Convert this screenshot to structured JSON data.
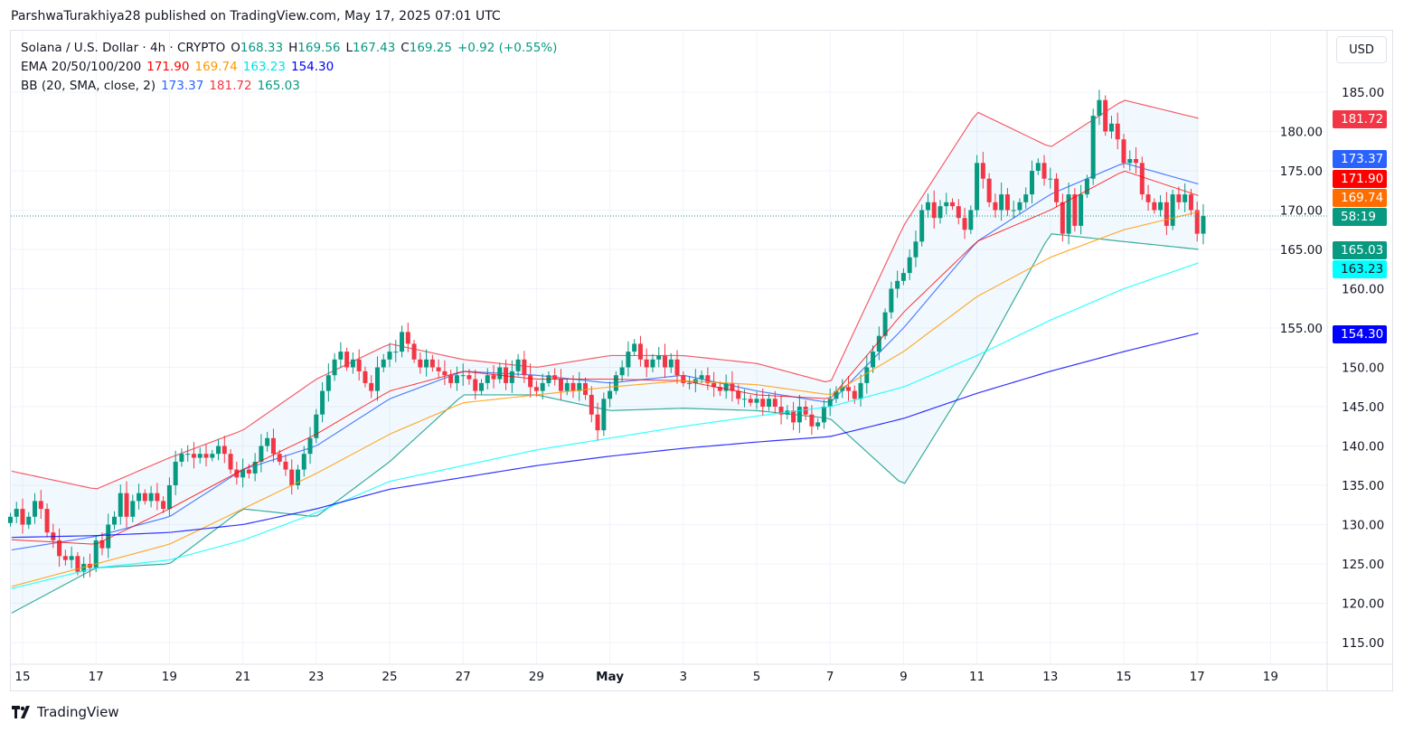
{
  "publisher_line": "ParshwaTurakhiya28 published on TradingView.com, May 17, 2025 07:01 UTC",
  "legend": {
    "symbol": "Solana / U.S. Dollar · 4h · CRYPTO",
    "o_label": "O",
    "o": "168.33",
    "h_label": "H",
    "h": "169.56",
    "l_label": "L",
    "l": "167.43",
    "c_label": "C",
    "c": "169.25",
    "change": "+0.92 (+0.55%)",
    "ema_label": "EMA 20/50/100/200",
    "ema_values": [
      "171.90",
      "169.74",
      "163.23",
      "154.30"
    ],
    "bb_label": "BB (20, SMA, close, 2)",
    "bb_values": [
      "173.37",
      "181.72",
      "165.03"
    ]
  },
  "currency_button": "USD",
  "footer_logo": "TradingView",
  "colors": {
    "up": "#089981",
    "down": "#f23645",
    "ema20": "#ff0000",
    "ema50": "#ff9800",
    "ema100": "#00ffff",
    "ema200": "#0000ff",
    "bb_basis": "#2962ff",
    "bb_upper": "#f23645",
    "bb_lower": "#089981",
    "bb_fill": "#2196f3"
  },
  "price_badges": [
    {
      "label": "181.72",
      "color": "#f23645",
      "text": "#ffffff"
    },
    {
      "label": "173.37",
      "color": "#2962ff",
      "text": "#ffffff"
    },
    {
      "label": "171.90",
      "color": "#ff0000",
      "text": "#ffffff"
    },
    {
      "label": "169.74",
      "color": "#ff6d00",
      "text": "#ffffff"
    },
    {
      "label": "58:19",
      "color": "#089981",
      "text": "#ffffff"
    },
    {
      "label": "165.03",
      "color": "#089981",
      "text": "#ffffff"
    },
    {
      "label": "163.23",
      "color": "#00ffff",
      "text": "#131722"
    },
    {
      "label": "154.30",
      "color": "#0000ff",
      "text": "#ffffff"
    }
  ],
  "chart_data": {
    "type": "candlestick",
    "timeframe": "4h",
    "first_candle": "Apr 14 16:00",
    "last_close": 169.25,
    "closes": [
      131,
      132,
      130,
      131,
      133,
      132,
      129,
      128,
      126,
      125.5,
      126,
      124,
      125,
      124.5,
      128,
      127,
      130,
      131,
      134,
      131,
      133,
      134,
      133,
      134,
      133,
      132,
      135,
      138,
      139,
      139,
      138.5,
      139,
      138.5,
      139,
      140,
      139,
      137,
      136,
      137,
      136.5,
      138,
      140,
      141,
      139,
      138,
      137,
      135,
      137,
      139,
      141,
      144,
      147,
      149,
      151,
      152,
      150,
      151,
      149.5,
      148,
      147,
      150,
      151,
      152,
      152,
      154.5,
      153,
      151,
      150,
      151,
      150,
      149.5,
      149,
      148,
      149,
      149,
      148.5,
      147,
      148,
      149,
      148.5,
      150,
      148,
      149.5,
      151,
      149,
      147.5,
      147,
      148,
      149,
      148.5,
      147,
      148,
      147,
      148,
      146.5,
      144,
      142,
      146,
      147,
      149,
      150,
      152,
      153,
      151,
      150,
      151,
      151.5,
      150,
      151,
      149,
      148,
      148,
      148.5,
      149,
      148,
      147.5,
      147,
      148,
      147,
      146,
      146,
      145.5,
      146,
      145,
      146,
      145,
      144,
      144.5,
      143,
      145,
      144,
      142.5,
      143,
      145,
      146,
      147,
      147.5,
      147,
      146,
      148,
      150,
      152,
      154,
      157,
      160,
      161,
      162,
      164,
      166,
      170,
      171,
      169,
      170.5,
      171,
      170.5,
      169,
      167.5,
      170,
      176,
      174,
      171,
      170,
      172,
      170,
      170,
      171,
      172,
      175,
      176,
      174,
      174,
      171,
      167,
      172,
      168,
      172,
      174,
      182,
      184,
      180,
      181,
      179,
      176,
      176.5,
      176,
      172,
      171,
      170,
      171,
      168,
      172,
      171,
      172,
      170,
      167,
      169.25
    ],
    "indicator_dates": [
      "Apr 15",
      "Apr 17",
      "Apr 19",
      "Apr 21",
      "Apr 23",
      "Apr 25",
      "Apr 27",
      "Apr 29",
      "May 1",
      "May 3",
      "May 5",
      "May 7",
      "May 9",
      "May 11",
      "May 13",
      "May 15",
      "May 17"
    ],
    "ema20": [
      128,
      127.5,
      132,
      137,
      141.5,
      147,
      149.5,
      148.5,
      148.5,
      148.3,
      146.5,
      146,
      157,
      166,
      170,
      175,
      171.9
    ],
    "ema50": [
      122.5,
      125,
      127.5,
      132,
      136.5,
      141.5,
      145.5,
      146.5,
      147.5,
      148.3,
      147.8,
      146.5,
      152,
      159,
      164,
      167.5,
      169.74
    ],
    "ema100": [
      122.2,
      124.5,
      125.5,
      128,
      131.5,
      135.5,
      137.5,
      139.5,
      141,
      142.5,
      143.8,
      145,
      147.5,
      151.5,
      156,
      160,
      163.23
    ],
    "ema200": [
      128.4,
      128.6,
      129,
      130,
      132,
      134.5,
      136,
      137.5,
      138.7,
      139.7,
      140.5,
      141.2,
      143.5,
      146.7,
      149.5,
      152,
      154.3
    ],
    "bb_basis": [
      127,
      128.5,
      131,
      137,
      140,
      146,
      149.5,
      149,
      148,
      149,
      147,
      145.5,
      155,
      166,
      172,
      176,
      173.37
    ],
    "bb_upper": [
      136.5,
      134.5,
      138.5,
      142,
      148.5,
      153,
      151,
      150,
      151.5,
      151.5,
      150.5,
      148,
      168,
      182.5,
      178,
      184,
      181.72
    ],
    "bb_lower": [
      119.5,
      124.5,
      125,
      132,
      131,
      138,
      146.5,
      146.5,
      144.5,
      144.8,
      144.5,
      143.5,
      135,
      150,
      167,
      166,
      165.03
    ],
    "y_ticks": [
      "185.00",
      "180.00",
      "175.00",
      "170.00",
      "165.00",
      "160.00",
      "155.00",
      "150.00",
      "145.00",
      "140.00",
      "135.00",
      "130.00",
      "125.00",
      "120.00",
      "115.00"
    ],
    "x_ticks": [
      "15",
      "17",
      "19",
      "21",
      "23",
      "25",
      "27",
      "29",
      "May",
      "3",
      "5",
      "7",
      "9",
      "11",
      "13",
      "15",
      "17",
      "19"
    ],
    "ylim": [
      113,
      189
    ],
    "grid": true,
    "ylabel_side": "right"
  }
}
